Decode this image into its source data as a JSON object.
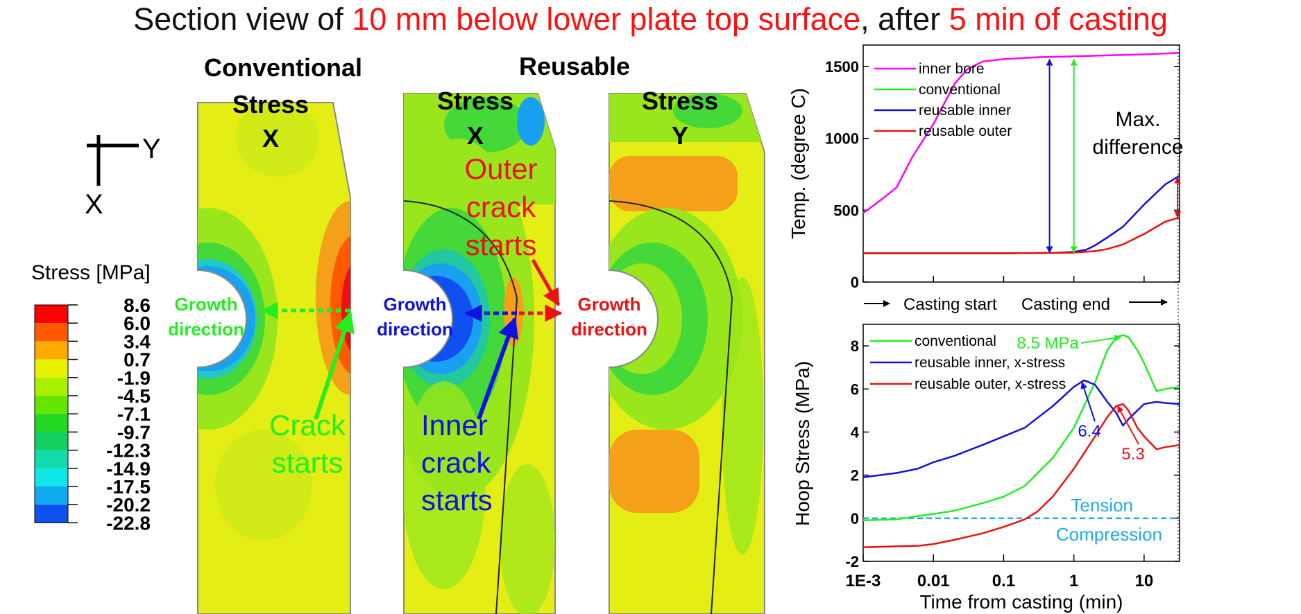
{
  "title": {
    "part1": "Section view of ",
    "part2": "10 mm below lower plate top surface",
    "part3": ", after ",
    "part4": "5 min of casting"
  },
  "colors": {
    "magenta": "#ff00ff",
    "green": "#22ee22",
    "blue": "#1010e0",
    "red": "#ee1010",
    "cyan": "#22aaee",
    "field_yellow": "#e4ee14",
    "field_orange": "#f4a018"
  },
  "panel_headers": {
    "conventional": "Conventional",
    "reusable": "Reusable",
    "conv_stress": "Stress",
    "conv_axis": "X",
    "reu_x_stress": "Stress",
    "reu_x_axis": "X",
    "reu_y_stress": "Stress",
    "reu_y_axis": "Y"
  },
  "axes_indicator": {
    "y": "Y",
    "x": "X"
  },
  "legend": {
    "title": "Stress [MPa]",
    "levels": [
      "8.6",
      "6.0",
      "3.4",
      "0.7",
      "-1.9",
      "-4.5",
      "-7.1",
      "-9.7",
      "-12.3",
      "-14.9",
      "-17.5",
      "-20.2",
      "-22.8"
    ],
    "band_colors": [
      "#ff0000",
      "#ff5a00",
      "#ffaa00",
      "#e8f200",
      "#a6f000",
      "#64e600",
      "#22d822",
      "#12d060",
      "#12dcaa",
      "#10e8e8",
      "#10aaf0",
      "#1050f0",
      "#0a00f0"
    ]
  },
  "annotations": {
    "growth_word": "Growth",
    "direction_word": "direction",
    "crack_line1": "Crack",
    "crack_line2": "starts",
    "inner_line1": "Inner",
    "inner_line2": "crack",
    "inner_line3": "starts",
    "outer_line1": "Outer",
    "outer_line2": "crack",
    "outer_line3": "starts"
  },
  "chart_data": [
    {
      "type": "line",
      "title": "",
      "xlabel": "",
      "ylabel": "Temp. (degree C)",
      "xscale": "log",
      "xlim": [
        0.001,
        32
      ],
      "ylim": [
        0,
        1650
      ],
      "yticks": [
        0,
        500,
        1000,
        1500
      ],
      "ytick_labels": [
        "0",
        "500",
        "1000",
        "1500"
      ],
      "legend_position": "top-left",
      "series": [
        {
          "name": "inner bore",
          "color": "#ff00ff",
          "x": [
            0.001,
            0.002,
            0.003,
            0.005,
            0.01,
            0.02,
            0.03,
            0.05,
            0.1,
            0.3,
            1,
            3,
            10,
            32
          ],
          "y": [
            480,
            590,
            660,
            870,
            1100,
            1380,
            1480,
            1535,
            1552,
            1565,
            1572,
            1578,
            1585,
            1595
          ]
        },
        {
          "name": "conventional",
          "color": "#22ee22",
          "x": [
            0.001,
            0.1,
            0.5,
            1
          ],
          "y": [
            200,
            200,
            202,
            205
          ]
        },
        {
          "name": "reusable inner",
          "color": "#1010e0",
          "x": [
            0.001,
            0.1,
            0.5,
            1,
            1.5,
            2,
            3,
            5,
            10,
            20,
            32
          ],
          "y": [
            200,
            200,
            203,
            210,
            225,
            255,
            310,
            385,
            540,
            680,
            740
          ]
        },
        {
          "name": "reusable outer",
          "color": "#ee1010",
          "x": [
            0.001,
            0.1,
            1,
            2,
            3,
            5,
            10,
            20,
            32
          ],
          "y": [
            200,
            200,
            205,
            215,
            230,
            262,
            335,
            420,
            450
          ]
        }
      ],
      "annotations": {
        "max_difference_line1": "Max.",
        "max_difference_line2": "difference",
        "casting_start": "Casting start",
        "casting_end": "Casting end"
      },
      "difference_arrows": [
        {
          "color": "#1010e0",
          "x": 0.45,
          "y_from": 205,
          "y_to": 1550
        },
        {
          "color": "#22ee22",
          "x": 1.0,
          "y_from": 205,
          "y_to": 1550
        },
        {
          "color": "#ee1010",
          "x": 30,
          "y_from": 450,
          "y_to": 730
        }
      ]
    },
    {
      "type": "line",
      "title": "",
      "xlabel": "Time from casting (min)",
      "ylabel": "Hoop Stress (MPa)",
      "xscale": "log",
      "xlim": [
        0.001,
        32
      ],
      "ylim": [
        -2,
        9
      ],
      "xticks": [
        0.001,
        0.01,
        0.1,
        1,
        10
      ],
      "xtick_labels": [
        "1E-3",
        "0.01",
        "0.1",
        "1",
        "10"
      ],
      "yticks": [
        -2,
        0,
        2,
        4,
        6,
        8
      ],
      "ytick_labels": [
        "-2",
        "0",
        "2",
        "4",
        "6",
        "8"
      ],
      "legend_position": "top-left",
      "series": [
        {
          "name": "conventional",
          "color": "#22ee22",
          "x": [
            0.001,
            0.003,
            0.006,
            0.01,
            0.02,
            0.05,
            0.1,
            0.2,
            0.5,
            1,
            2,
            3,
            4,
            5,
            6,
            8,
            10,
            15,
            20,
            32
          ],
          "y": [
            -0.1,
            -0.05,
            0.1,
            0.2,
            0.35,
            0.7,
            1.0,
            1.5,
            2.8,
            4.2,
            6.3,
            7.8,
            8.4,
            8.5,
            8.4,
            7.8,
            7.2,
            5.9,
            6.0,
            6.1
          ]
        },
        {
          "name": "reusable inner, x-stress",
          "color": "#1010e0",
          "x": [
            0.001,
            0.003,
            0.006,
            0.01,
            0.02,
            0.05,
            0.1,
            0.2,
            0.5,
            1,
            1.4,
            2,
            3,
            4,
            5,
            6,
            8,
            10,
            15,
            20,
            32
          ],
          "y": [
            1.9,
            2.1,
            2.3,
            2.6,
            2.9,
            3.4,
            3.8,
            4.2,
            5.2,
            6.1,
            6.4,
            6.2,
            5.4,
            4.9,
            4.3,
            4.6,
            5.0,
            5.3,
            5.4,
            5.35,
            5.3
          ]
        },
        {
          "name": "reusable outer, x-stress",
          "color": "#ee1010",
          "x": [
            0.001,
            0.003,
            0.006,
            0.01,
            0.02,
            0.05,
            0.1,
            0.2,
            0.3,
            0.5,
            1,
            2,
            3,
            4,
            5,
            6,
            8,
            10,
            15,
            20,
            32
          ],
          "y": [
            -1.35,
            -1.3,
            -1.28,
            -1.2,
            -1.0,
            -0.7,
            -0.4,
            -0.05,
            0.3,
            1.0,
            2.3,
            3.8,
            4.7,
            5.2,
            5.3,
            5.0,
            4.2,
            3.8,
            3.2,
            3.3,
            3.4
          ]
        }
      ],
      "reference_line": {
        "y": 0,
        "color": "#22aaee",
        "style": "dashed",
        "label_above": "Tension",
        "label_below": "Compression"
      },
      "peak_labels": [
        {
          "text": "8.5 MPa",
          "color": "#22ee22",
          "x": 5,
          "y": 8.5
        },
        {
          "text": "6.4",
          "color": "#1010e0",
          "x": 1.4,
          "y": 6.4
        },
        {
          "text": "5.3",
          "color": "#ee1010",
          "x": 4.5,
          "y": 5.3
        }
      ]
    }
  ]
}
